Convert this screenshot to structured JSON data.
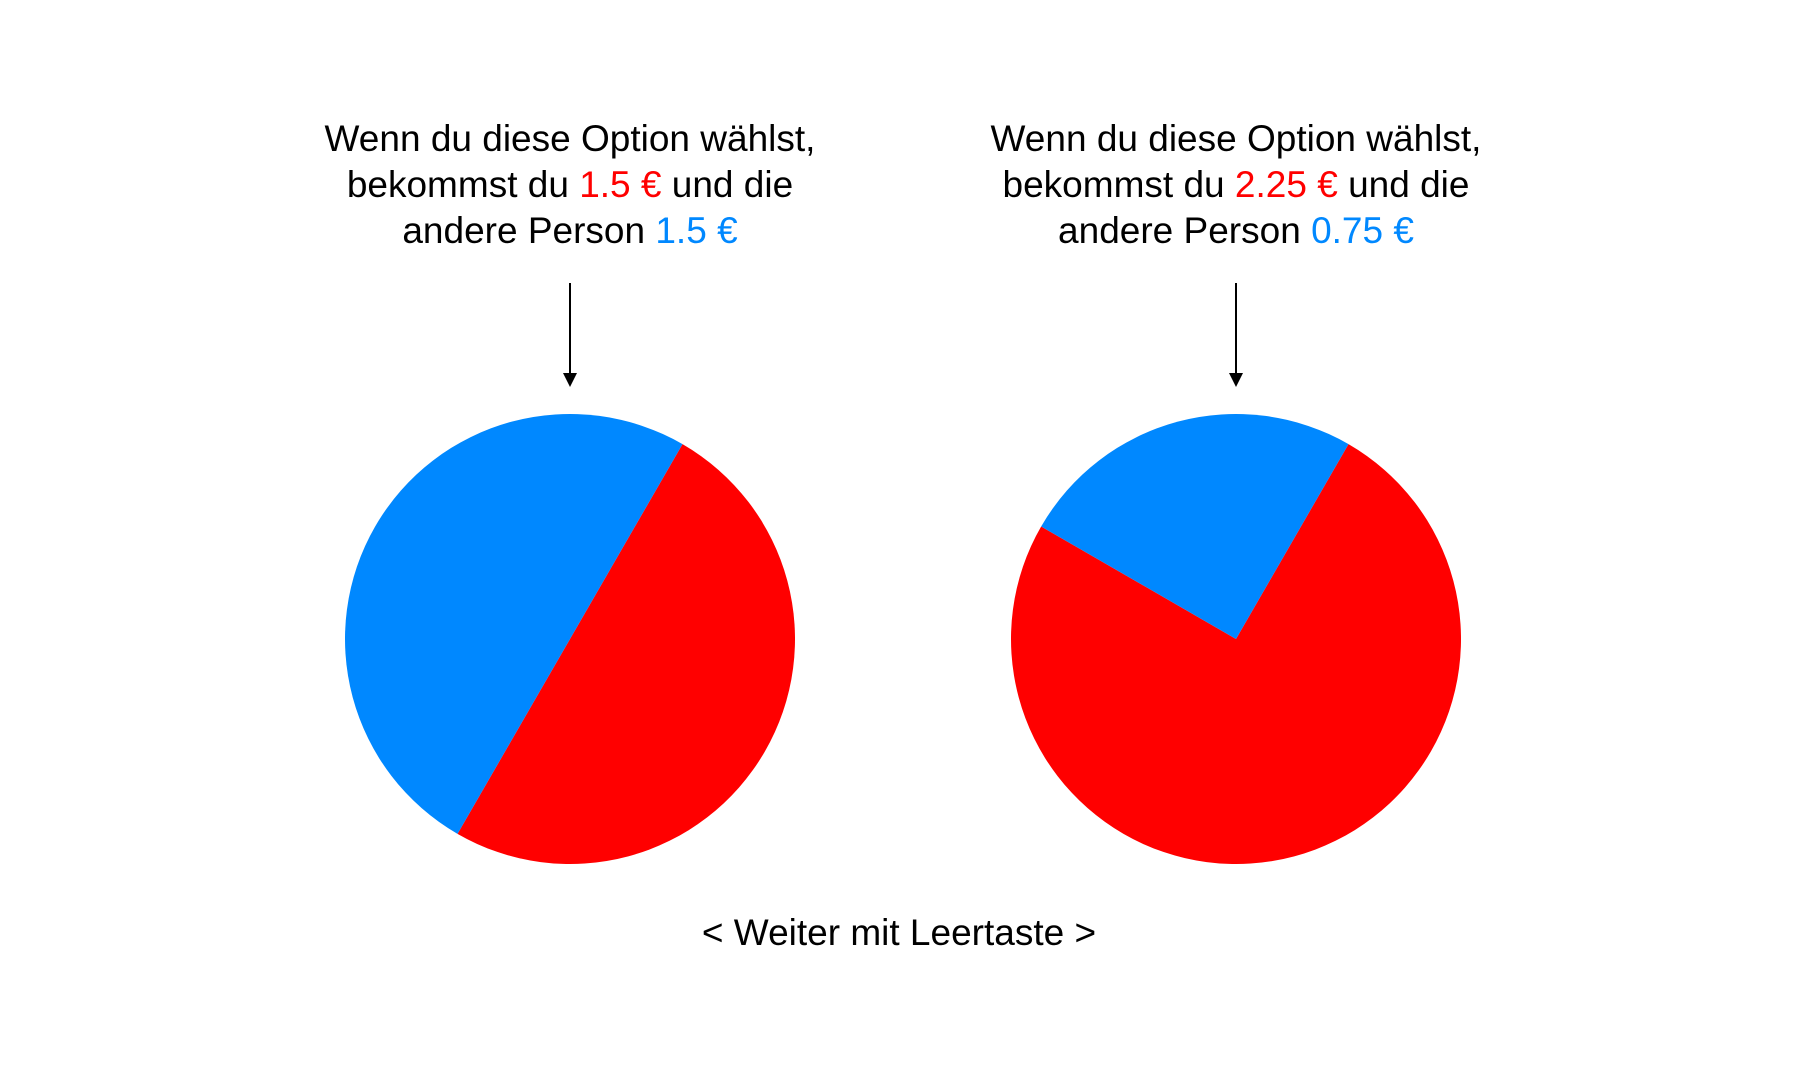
{
  "colors": {
    "self": "#FF0000",
    "other": "#0088FF",
    "text": "#000000",
    "background": "#FFFFFF"
  },
  "options": [
    {
      "line1": "Wenn du diese Option wählst,",
      "line2_prefix": "bekommst du",
      "self_amount": "1.5 €",
      "line2_suffix": "und die",
      "line3_prefix": "andere Person",
      "other_amount": "1.5 €"
    },
    {
      "line1": "Wenn du diese Option wählst,",
      "line2_prefix": "bekommst du",
      "self_amount": "2.25 €",
      "line2_suffix": "und die",
      "line3_prefix": "andere Person",
      "other_amount": "0.75 €"
    }
  ],
  "chart_data": [
    {
      "type": "pie",
      "slices": [
        {
          "label": "1.5 €",
          "value": 1.5,
          "color": "#FF0000"
        },
        {
          "label": "1.5 €",
          "value": 1.5,
          "color": "#0088FF"
        }
      ]
    },
    {
      "type": "pie",
      "slices": [
        {
          "label": "2.25 €",
          "value": 2.25,
          "color": "#FF0000"
        },
        {
          "label": "0.75 €",
          "value": 0.75,
          "color": "#0088FF"
        }
      ]
    }
  ],
  "footer": {
    "hint": "< Weiter mit Leertaste >"
  }
}
